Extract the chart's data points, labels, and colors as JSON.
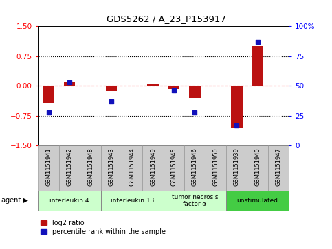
{
  "title": "GDS5262 / A_23_P153917",
  "samples": [
    "GSM1151941",
    "GSM1151942",
    "GSM1151948",
    "GSM1151943",
    "GSM1151944",
    "GSM1151949",
    "GSM1151945",
    "GSM1151946",
    "GSM1151950",
    "GSM1151939",
    "GSM1151940",
    "GSM1151947"
  ],
  "log2_ratio": [
    -0.42,
    0.1,
    0.0,
    -0.14,
    0.0,
    0.03,
    -0.08,
    -0.3,
    0.0,
    -1.05,
    1.0,
    0.0
  ],
  "percentile": [
    28,
    53,
    0,
    37,
    0,
    0,
    46,
    28,
    0,
    17,
    87,
    0
  ],
  "agents": [
    {
      "label": "interleukin 4",
      "start": 0,
      "end": 3,
      "color": "#ccffcc"
    },
    {
      "label": "interleukin 13",
      "start": 3,
      "end": 6,
      "color": "#ccffcc"
    },
    {
      "label": "tumor necrosis\nfactor-α",
      "start": 6,
      "end": 9,
      "color": "#ccffcc"
    },
    {
      "label": "unstimulated",
      "start": 9,
      "end": 12,
      "color": "#44cc44"
    }
  ],
  "ylim_left": [
    -1.5,
    1.5
  ],
  "ylim_right": [
    0,
    100
  ],
  "yticks_left": [
    -1.5,
    -0.75,
    0,
    0.75,
    1.5
  ],
  "yticks_right": [
    0,
    25,
    50,
    75,
    100
  ],
  "hlines": [
    0.75,
    -0.75
  ],
  "bar_width": 0.55,
  "red_color": "#bb1111",
  "blue_color": "#1111bb",
  "background_color": "#ffffff",
  "legend_red": "log2 ratio",
  "legend_blue": "percentile rank within the sample",
  "sample_bg": "#cccccc",
  "sample_edge": "#999999",
  "agent_edge": "#888888"
}
